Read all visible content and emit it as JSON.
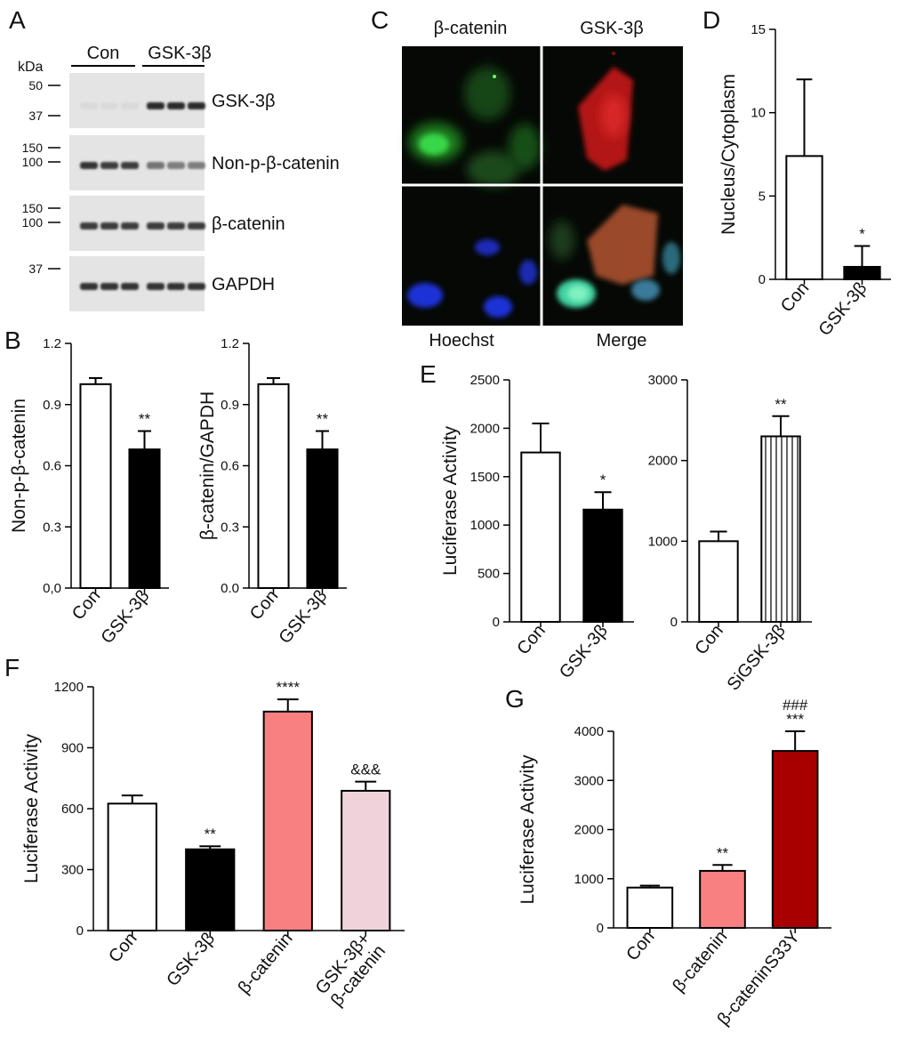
{
  "colors": {
    "white": "#ffffff",
    "black": "#000000",
    "salmon": "#f98080",
    "light_pink": "#eed4da",
    "dark_red": "#a80000",
    "blot_bg": "#e4e4e4",
    "band": "#2a2a2a",
    "micro_bg": "#050805"
  },
  "panels": {
    "A": {
      "label": "A",
      "groups": [
        "Con",
        "GSK-3β"
      ],
      "kda_label": "kDa",
      "strips": [
        {
          "target": "GSK-3β",
          "markers": [
            {
              "kda": "50",
              "row": "top"
            },
            {
              "kda": "37",
              "row": "bottom"
            }
          ],
          "band_intensity": [
            0.05,
            0.05,
            0.05,
            1.0,
            1.0,
            1.0
          ]
        },
        {
          "target": "Non-p-β-catenin",
          "markers": [
            {
              "kda": "150",
              "row": "top"
            },
            {
              "kda": "100",
              "row": "mid"
            }
          ],
          "band_intensity": [
            0.95,
            0.9,
            0.9,
            0.6,
            0.55,
            0.55
          ]
        },
        {
          "target": "β-catenin",
          "markers": [
            {
              "kda": "150",
              "row": "top"
            },
            {
              "kda": "100",
              "row": "mid"
            }
          ],
          "band_intensity": [
            0.9,
            0.9,
            0.9,
            0.9,
            0.9,
            0.9
          ]
        },
        {
          "target": "GAPDH",
          "markers": [
            {
              "kda": "37",
              "row": "top"
            }
          ],
          "band_intensity": [
            0.95,
            0.95,
            0.95,
            0.95,
            0.95,
            0.95
          ]
        }
      ]
    },
    "C": {
      "label": "C",
      "channels": [
        "β-catenin",
        "GSK-3β",
        "Hoechst",
        "Merge"
      ]
    },
    "labels": {
      "B": "B",
      "D": "D",
      "E": "E",
      "F": "F",
      "G": "G"
    }
  },
  "chart_data": [
    {
      "id": "B1",
      "type": "bar",
      "categories": [
        "Con",
        "GSK-3β"
      ],
      "values": [
        1.0,
        0.68
      ],
      "errors": [
        0.03,
        0.09
      ],
      "fills": [
        "white",
        "black"
      ],
      "annotations": [
        "",
        "**"
      ],
      "ylabel": "Non-p-β-catenin",
      "ylim": [
        0,
        1.2
      ],
      "yticks": [
        "0,0",
        "0.3",
        "0.6",
        "0.9",
        "1.2"
      ],
      "ytick_values": [
        0,
        0.3,
        0.6,
        0.9,
        1.2
      ]
    },
    {
      "id": "B2",
      "type": "bar",
      "categories": [
        "Con",
        "GSK-3β"
      ],
      "values": [
        1.0,
        0.68
      ],
      "errors": [
        0.03,
        0.09
      ],
      "fills": [
        "white",
        "black"
      ],
      "annotations": [
        "",
        "**"
      ],
      "ylabel": "β-catenin/GAPDH",
      "ylim": [
        0,
        1.2
      ],
      "yticks": [
        "0.0",
        "0.3",
        "0.6",
        "0.9",
        "1.2"
      ],
      "ytick_values": [
        0,
        0.3,
        0.6,
        0.9,
        1.2
      ]
    },
    {
      "id": "D",
      "type": "bar",
      "categories": [
        "Con",
        "GSK-3β"
      ],
      "values": [
        7.4,
        0.75
      ],
      "errors": [
        4.6,
        1.25
      ],
      "fills": [
        "white",
        "black"
      ],
      "annotations": [
        "",
        "*"
      ],
      "ylabel": "Nucleus/Cytoplasm",
      "ylim": [
        0,
        15
      ],
      "yticks": [
        "0",
        "5",
        "10",
        "15"
      ],
      "ytick_values": [
        0,
        5,
        10,
        15
      ]
    },
    {
      "id": "E1",
      "type": "bar",
      "categories": [
        "Con",
        "GSK-3β"
      ],
      "values": [
        1750,
        1160
      ],
      "errors": [
        300,
        180
      ],
      "fills": [
        "white",
        "black"
      ],
      "annotations": [
        "",
        "*"
      ],
      "ylabel": "Luciferase Activity",
      "ylim": [
        0,
        2500
      ],
      "yticks": [
        "0",
        "500",
        "1000",
        "1500",
        "2000",
        "2500"
      ],
      "ytick_values": [
        0,
        500,
        1000,
        1500,
        2000,
        2500
      ]
    },
    {
      "id": "E2",
      "type": "bar",
      "categories": [
        "Con",
        "SiGSK-3β"
      ],
      "values": [
        1000,
        2300
      ],
      "errors": [
        120,
        250
      ],
      "fills": [
        "white",
        "stripes"
      ],
      "annotations": [
        "",
        "**"
      ],
      "ylabel": "",
      "ylim": [
        0,
        3000
      ],
      "yticks": [
        "0",
        "1000",
        "2000",
        "3000"
      ],
      "ytick_values": [
        0,
        1000,
        2000,
        3000
      ]
    },
    {
      "id": "F",
      "type": "bar",
      "categories": [
        "Con",
        "GSK-3β",
        "β-catenin",
        "GSK-3β+\nβ-catenin"
      ],
      "values": [
        625,
        400,
        1078,
        688
      ],
      "errors": [
        40,
        15,
        60,
        45
      ],
      "fills": [
        "white",
        "black",
        "salmon",
        "light_pink"
      ],
      "annotations": [
        "",
        "**",
        "****",
        "&&&"
      ],
      "ylabel": "Luciferase Activity",
      "ylim": [
        0,
        1200
      ],
      "yticks": [
        "0",
        "300",
        "600",
        "900",
        "1200"
      ],
      "ytick_values": [
        0,
        300,
        600,
        900,
        1200
      ]
    },
    {
      "id": "G",
      "type": "bar",
      "categories": [
        "Con",
        "β-catenin",
        "β-cateninS33Y"
      ],
      "values": [
        820,
        1160,
        3600
      ],
      "errors": [
        40,
        120,
        400
      ],
      "fills": [
        "white",
        "salmon",
        "dark_red"
      ],
      "annotations": [
        "",
        "**",
        "###\n***"
      ],
      "ylabel": "Luciferase Activity",
      "ylim": [
        0,
        4000
      ],
      "yticks": [
        "0",
        "1000",
        "2000",
        "3000",
        "4000"
      ],
      "ytick_values": [
        0,
        1000,
        2000,
        3000,
        4000
      ]
    }
  ]
}
